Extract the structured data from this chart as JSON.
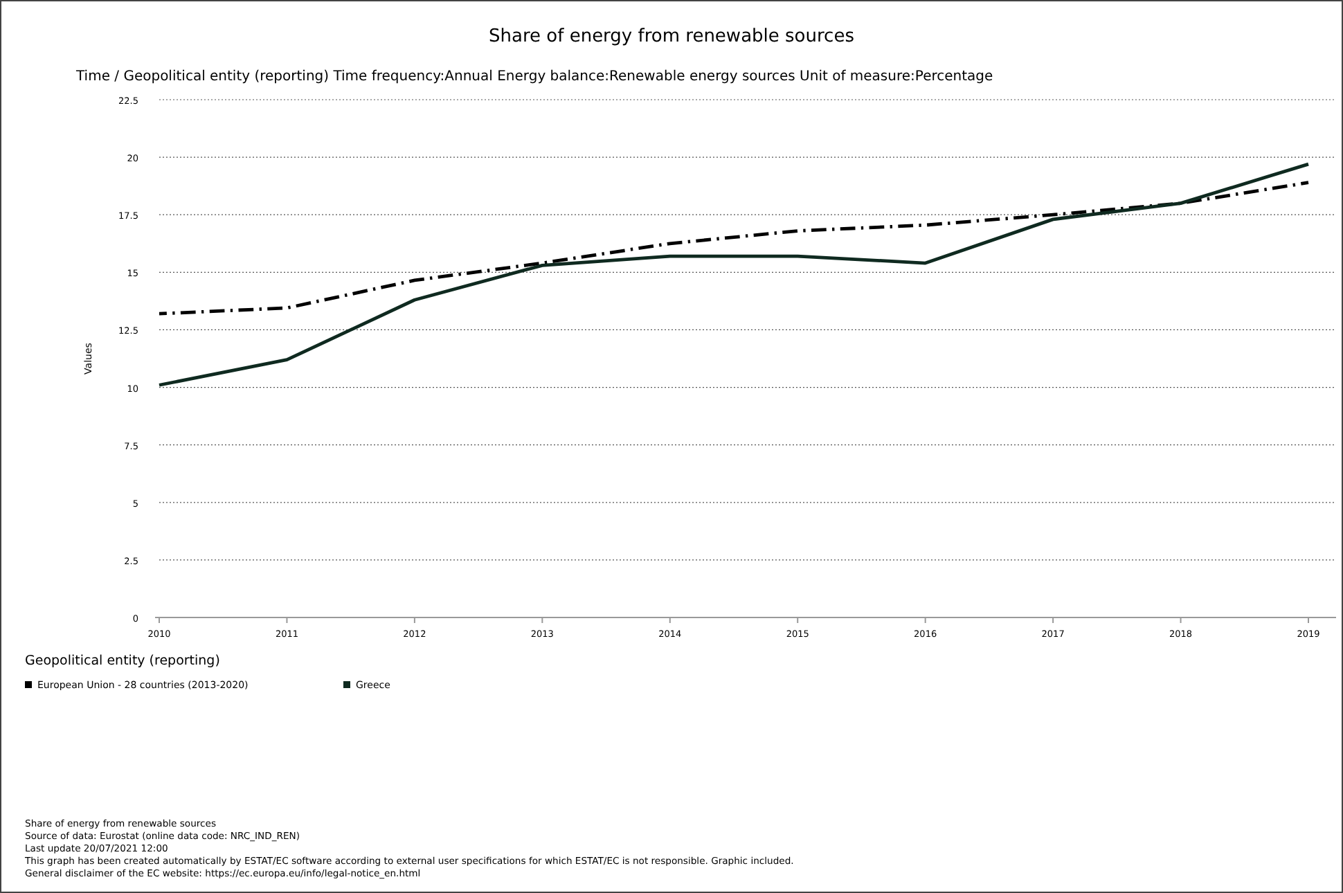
{
  "chart_data": {
    "type": "line",
    "title": "Share of energy from renewable sources",
    "subtitle": "Time / Geopolitical entity (reporting)  Time frequency:Annual  Energy balance:Renewable energy sources  Unit of measure:Percentage",
    "ylabel": "Values",
    "legend_title": "Geopolitical entity (reporting)",
    "categories": [
      "2010",
      "2011",
      "2012",
      "2013",
      "2014",
      "2015",
      "2016",
      "2017",
      "2018",
      "2019"
    ],
    "series": [
      {
        "name": "European Union - 28 countries (2013-2020)",
        "color": "#000000",
        "line_style": "dashed",
        "values": [
          13.2,
          13.45,
          14.65,
          15.4,
          16.25,
          16.8,
          17.05,
          17.5,
          18.0,
          18.9
        ]
      },
      {
        "name": "Greece",
        "color": "#0f2a20",
        "line_style": "solid",
        "values": [
          10.1,
          11.2,
          13.8,
          15.3,
          15.7,
          15.7,
          15.4,
          17.3,
          18.0,
          19.7
        ]
      }
    ],
    "ylim": [
      0,
      22.5
    ],
    "yticks": [
      0,
      2.5,
      5,
      7.5,
      10,
      12.5,
      15,
      17.5,
      20,
      22.5
    ],
    "grid": "y",
    "legend": "bottom",
    "marker": "none",
    "annotations": [
      "Share of energy from renewable sources",
      "Source of data: Eurostat (online data code: NRC_IND_REN)",
      "Last update 20/07/2021 12:00",
      "This graph has been created automatically by ESTAT/EC software according to external user specifications for which ESTAT/EC is not responsible. Graphic included.",
      "General disclaimer of the EC website: https://ec.europa.eu/info/legal-notice_en.html"
    ]
  }
}
